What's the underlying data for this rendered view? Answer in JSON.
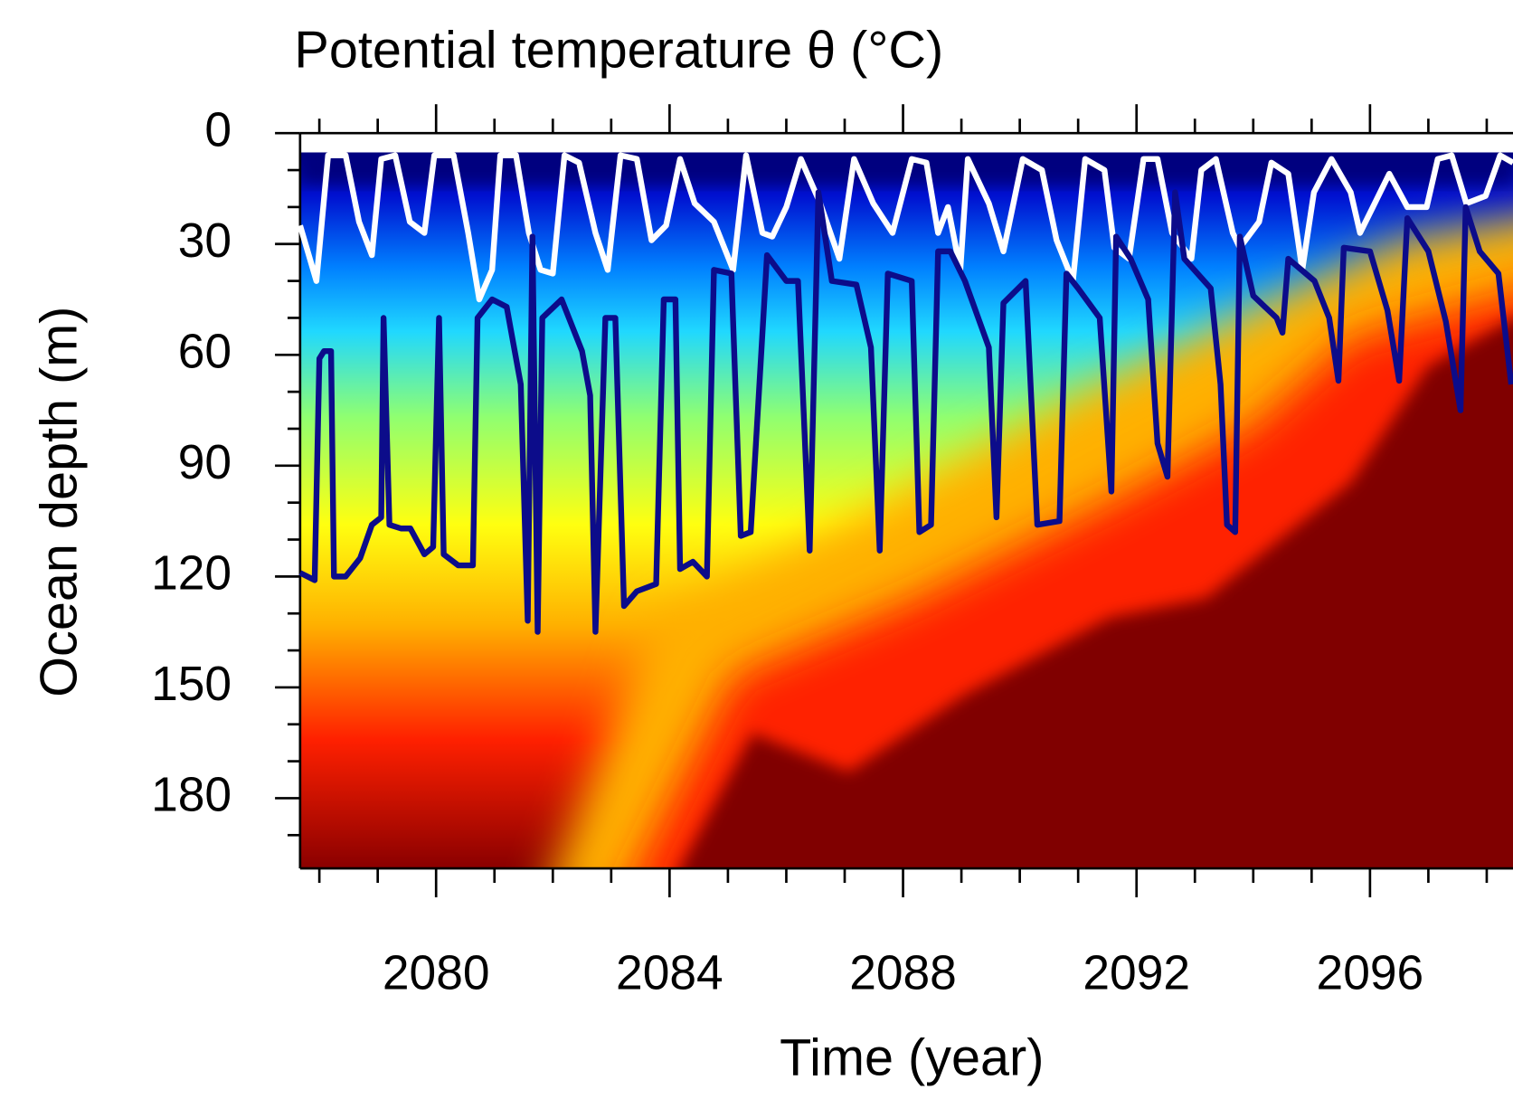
{
  "chart_data": {
    "type": "contour",
    "title": "Potential temperature θ (°C)",
    "xlabel": "Time (year)",
    "ylabel": "Ocean depth (m)",
    "xlim": [
      2077.67,
      2098.45
    ],
    "ylim": [
      0,
      199
    ],
    "y_inverted": true,
    "xticks": [
      2080,
      2084,
      2088,
      2092,
      2096
    ],
    "xminorticks": [
      2078,
      2079,
      2081,
      2082,
      2083,
      2085,
      2086,
      2087,
      2089,
      2090,
      2091,
      2093,
      2094,
      2095,
      2097,
      2098
    ],
    "yticks": [
      0,
      30,
      60,
      90,
      120,
      150,
      180
    ],
    "yminorticks": [
      10,
      20,
      40,
      50,
      70,
      80,
      100,
      110,
      130,
      140,
      160,
      170,
      190
    ],
    "series": [
      {
        "color": "#ffffff",
        "x": [
          2077.67,
          2077.95,
          2078.15,
          2078.45,
          2078.68,
          2078.9,
          2079.06,
          2079.3,
          2079.55,
          2079.8,
          2079.97,
          2080.3,
          2080.55,
          2080.74,
          2080.96,
          2081.1,
          2081.37,
          2081.59,
          2081.79,
          2082.0,
          2082.2,
          2082.45,
          2082.73,
          2082.94,
          2083.16,
          2083.44,
          2083.69,
          2083.94,
          2084.18,
          2084.43,
          2084.76,
          2085.09,
          2085.31,
          2085.59,
          2085.76,
          2086.0,
          2086.25,
          2086.58,
          2086.91,
          2087.16,
          2087.49,
          2087.82,
          2088.15,
          2088.4,
          2088.6,
          2088.77,
          2088.98,
          2089.11,
          2089.47,
          2089.72,
          2090.05,
          2090.38,
          2090.63,
          2090.91,
          2091.12,
          2091.45,
          2091.62,
          2091.87,
          2092.12,
          2092.36,
          2092.61,
          2092.94,
          2093.11,
          2093.36,
          2093.65,
          2093.77,
          2094.1,
          2094.31,
          2094.6,
          2094.84,
          2095.04,
          2095.34,
          2095.67,
          2095.83,
          2096.05,
          2096.33,
          2096.64,
          2096.97,
          2097.16,
          2097.4,
          2097.65,
          2097.98,
          2098.23,
          2098.45
        ],
        "values": [
          25,
          40,
          6,
          6,
          24,
          33,
          7,
          6,
          24,
          27,
          6,
          6,
          27,
          45,
          37,
          6,
          6,
          27,
          37,
          38,
          6,
          8,
          27,
          37,
          6,
          7,
          29,
          25,
          7,
          19,
          24,
          37,
          6,
          27,
          28,
          20,
          7,
          19,
          34,
          7,
          19,
          27,
          7,
          8,
          27,
          20,
          37,
          7,
          19,
          32,
          7,
          10,
          29,
          40,
          7,
          10,
          31,
          34,
          7,
          7,
          27,
          34,
          10,
          7,
          27,
          31,
          24,
          8,
          11,
          37,
          16,
          7,
          16,
          27,
          20,
          11,
          20,
          20,
          7,
          6,
          19,
          17,
          6,
          8
        ]
      },
      {
        "color": "#0c0c8a",
        "x": [
          2077.67,
          2077.92,
          2078.0,
          2078.08,
          2078.2,
          2078.25,
          2078.45,
          2078.7,
          2078.9,
          2079.06,
          2079.1,
          2079.2,
          2079.4,
          2079.56,
          2079.8,
          2079.95,
          2080.05,
          2080.13,
          2080.38,
          2080.63,
          2080.71,
          2080.96,
          2081.21,
          2081.45,
          2081.57,
          2081.65,
          2081.74,
          2081.82,
          2082.15,
          2082.5,
          2082.64,
          2082.73,
          2082.9,
          2083.07,
          2083.22,
          2083.44,
          2083.77,
          2083.9,
          2084.1,
          2084.18,
          2084.4,
          2084.64,
          2084.76,
          2085.06,
          2085.22,
          2085.39,
          2085.67,
          2086.0,
          2086.2,
          2086.4,
          2086.55,
          2086.78,
          2087.2,
          2087.45,
          2087.6,
          2087.74,
          2088.15,
          2088.28,
          2088.48,
          2088.6,
          2088.81,
          2089.06,
          2089.47,
          2089.6,
          2089.72,
          2090.1,
          2090.3,
          2090.68,
          2090.8,
          2091.0,
          2091.37,
          2091.57,
          2091.65,
          2091.9,
          2092.2,
          2092.36,
          2092.53,
          2092.66,
          2092.82,
          2093.27,
          2093.44,
          2093.55,
          2093.69,
          2093.77,
          2094.0,
          2094.4,
          2094.5,
          2094.6,
          2095.05,
          2095.3,
          2095.46,
          2095.55,
          2096.0,
          2096.3,
          2096.5,
          2096.64,
          2097.0,
          2097.3,
          2097.55,
          2097.64,
          2097.88,
          2098.2,
          2098.42
        ],
        "values": [
          119,
          121,
          61,
          59,
          59,
          120,
          120,
          115,
          106,
          104,
          50,
          106,
          107,
          107,
          114,
          112,
          50,
          114,
          117,
          117,
          50,
          45,
          47,
          68,
          132,
          28,
          135,
          50,
          45,
          59,
          71,
          135,
          50,
          50,
          128,
          124,
          122,
          45,
          45,
          118,
          116,
          120,
          37,
          38,
          109,
          108,
          33,
          40,
          40,
          113,
          16,
          40,
          41,
          58,
          113,
          38,
          40,
          108,
          106,
          32,
          32,
          40,
          58,
          104,
          46,
          40,
          106,
          105,
          38,
          42,
          50,
          97,
          28,
          34,
          45,
          84,
          93,
          16,
          34,
          42,
          68,
          106,
          108,
          28,
          44,
          50,
          54,
          34,
          40,
          50,
          67,
          31,
          32,
          48,
          67,
          23,
          32,
          51,
          75,
          20,
          32,
          38,
          68
        ]
      }
    ]
  }
}
